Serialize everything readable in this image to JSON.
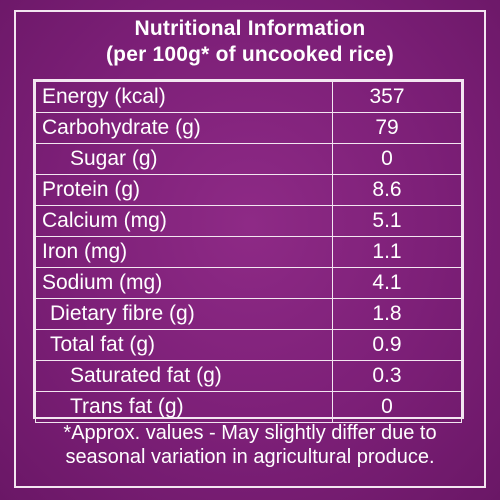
{
  "header": {
    "title": "Nutritional Information",
    "subtitle": "(per 100g* of uncooked rice)"
  },
  "rows": [
    {
      "name": "Energy (kcal)",
      "value": "357"
    },
    {
      "name": "Carbohydrate (g)",
      "value": "79"
    },
    {
      "name": "Sugar (g)",
      "value": "0"
    },
    {
      "name": "Protein (g)",
      "value": "8.6"
    },
    {
      "name": "Calcium (mg)",
      "value": "5.1"
    },
    {
      "name": "Iron (mg)",
      "value": "1.1"
    },
    {
      "name": "Sodium (mg)",
      "value": "4.1"
    },
    {
      "name": "Dietary fibre (g)",
      "value": "1.8"
    },
    {
      "name": "Total fat (g)",
      "value": "0.9"
    },
    {
      "name": "Saturated fat (g)",
      "value": "0.3"
    },
    {
      "name": "Trans fat (g)",
      "value": "0"
    }
  ],
  "footnote": {
    "line1": "*Approx. values - May slightly differ due to",
    "line2": "seasonal variation in agricultural produce."
  }
}
